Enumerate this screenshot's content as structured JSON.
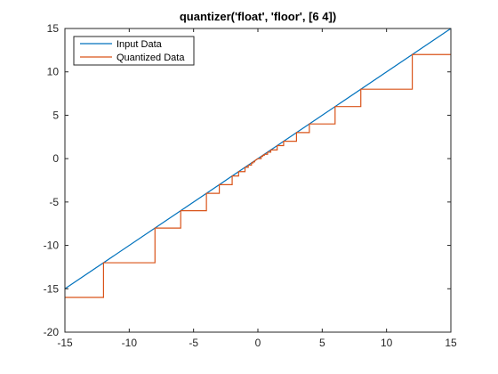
{
  "chart_data": {
    "type": "line",
    "title": "quantizer('float', 'floor', [6  4])",
    "xlabel": "",
    "ylabel": "",
    "xlim": [
      -15,
      15
    ],
    "ylim": [
      -20,
      15
    ],
    "xticks": [
      -15,
      -10,
      -5,
      0,
      5,
      10,
      15
    ],
    "yticks": [
      -20,
      -15,
      -10,
      -5,
      0,
      5,
      10,
      15
    ],
    "grid": false,
    "legend_position": "top-left",
    "series": [
      {
        "name": "Input Data",
        "color": "#0072BD",
        "x": [
          -15,
          15
        ],
        "y": [
          -15,
          15
        ]
      },
      {
        "name": "Quantized Data",
        "color": "#D95319",
        "x": [
          -15,
          -12,
          -12,
          -8,
          -8,
          -6,
          -6,
          -4,
          -4,
          -3,
          -3,
          -2,
          -2,
          -1.5,
          -1.5,
          -1,
          -1,
          -0.75,
          -0.75,
          -0.5,
          -0.5,
          -0.375,
          -0.375,
          -0.25,
          -0.25,
          0,
          0.25,
          0.25,
          0.375,
          0.375,
          0.5,
          0.5,
          0.75,
          0.75,
          1,
          1,
          1.5,
          1.5,
          2,
          2,
          3,
          3,
          4,
          4,
          6,
          6,
          8,
          8,
          12,
          12,
          15
        ],
        "y": [
          -16,
          -16,
          -12,
          -12,
          -8,
          -8,
          -6,
          -6,
          -4,
          -4,
          -3,
          -3,
          -2,
          -2,
          -1.5,
          -1.5,
          -1,
          -1,
          -0.75,
          -0.75,
          -0.5,
          -0.5,
          -0.375,
          -0.375,
          -0.25,
          0,
          0,
          0.25,
          0.25,
          0.375,
          0.375,
          0.5,
          0.5,
          0.75,
          0.75,
          1,
          1,
          1.5,
          1.5,
          2,
          2,
          3,
          3,
          4,
          4,
          6,
          6,
          8,
          8,
          12,
          12
        ]
      }
    ]
  }
}
